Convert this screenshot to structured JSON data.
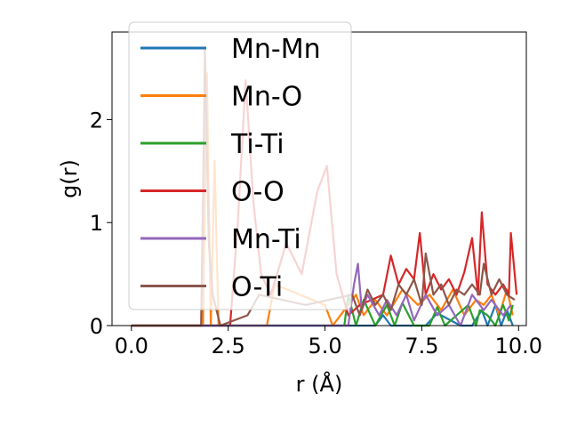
{
  "chart_data": {
    "type": "line",
    "xlabel": "r (Å)",
    "ylabel": "g(r)",
    "xlim": [
      -0.5,
      10.2
    ],
    "ylim": [
      0,
      2.85
    ],
    "x_ticks": [
      {
        "value": 0.0,
        "label": "0.0"
      },
      {
        "value": 2.5,
        "label": "2.5"
      },
      {
        "value": 5.0,
        "label": "5.0"
      },
      {
        "value": 7.5,
        "label": "7.5"
      },
      {
        "value": 10.0,
        "label": "10.0"
      }
    ],
    "y_ticks": [
      {
        "value": 0,
        "label": "0"
      },
      {
        "value": 1,
        "label": "1"
      },
      {
        "value": 2,
        "label": "2"
      }
    ],
    "legend": {
      "placement": "upper-left",
      "entries": [
        {
          "name": "Mn-Mn",
          "color": "#1f77b4"
        },
        {
          "name": "Mn-O",
          "color": "#ff7f0e"
        },
        {
          "name": "Ti-Ti",
          "color": "#2ca02c"
        },
        {
          "name": "O-O",
          "color": "#d62728"
        },
        {
          "name": "Mn-Ti",
          "color": "#9467bd"
        },
        {
          "name": "O-Ti",
          "color": "#8c564b"
        }
      ]
    },
    "series": [
      {
        "name": "Mn-Mn",
        "color": "#1f77b4",
        "x": [
          0,
          6.0,
          6.3,
          6.5,
          6.7,
          7.0,
          7.6,
          7.9,
          8.5,
          8.8,
          9.05,
          9.2,
          9.4,
          9.55,
          9.7,
          9.85
        ],
        "y": [
          0,
          0,
          0,
          0.1,
          0,
          0,
          0,
          0.12,
          0,
          0,
          0.15,
          0,
          0.2,
          0,
          0.15,
          0
        ]
      },
      {
        "name": "Mn-O",
        "color": "#ff7f0e",
        "x": [
          0,
          1.85,
          1.95,
          2.05,
          2.15,
          2.25,
          3.5,
          3.7,
          5.0,
          5.2,
          5.8,
          6.0,
          6.3,
          6.6,
          7.0,
          7.4,
          7.7,
          8.0,
          8.3,
          8.6,
          8.9,
          9.1,
          9.3,
          9.5,
          9.7,
          9.85
        ],
        "y": [
          0,
          0,
          2.45,
          0,
          1.6,
          0,
          0,
          0.4,
          0.2,
          0,
          0.3,
          0.1,
          0.25,
          0.1,
          0.35,
          0.2,
          0.3,
          0.15,
          0.35,
          0.1,
          0.25,
          0.2,
          0.3,
          0.1,
          0.35,
          0.1
        ]
      },
      {
        "name": "Ti-Ti",
        "color": "#2ca02c",
        "x": [
          0,
          5.5,
          5.6,
          5.8,
          6.0,
          6.3,
          6.6,
          6.8,
          7.0,
          7.3,
          7.7,
          7.9,
          8.1,
          8.4,
          8.7,
          8.9,
          9.0,
          9.2,
          9.4,
          9.6,
          9.75,
          9.85
        ],
        "y": [
          0,
          0,
          0.3,
          0,
          0.25,
          0,
          0.2,
          0,
          0.22,
          0,
          0,
          0.18,
          0,
          0.1,
          0.2,
          0,
          0.15,
          0.1,
          0,
          0.2,
          0.05,
          0.2
        ]
      },
      {
        "name": "O-O",
        "color": "#d62728",
        "x": [
          0,
          2.55,
          2.75,
          2.95,
          3.15,
          3.35,
          3.6,
          4.0,
          4.4,
          4.8,
          5.05,
          5.3,
          5.6,
          5.9,
          6.2,
          6.5,
          6.7,
          6.9,
          7.1,
          7.3,
          7.45,
          7.6,
          7.8,
          8.0,
          8.2,
          8.4,
          8.6,
          8.8,
          8.95,
          9.05,
          9.2,
          9.4,
          9.6,
          9.75,
          9.8,
          9.95
        ],
        "y": [
          0,
          0,
          1.0,
          2.38,
          1.2,
          0.5,
          0.3,
          0.8,
          0.5,
          1.3,
          1.55,
          0.5,
          0.1,
          0.2,
          0.25,
          0.3,
          0.68,
          0.4,
          0.55,
          0.45,
          0.9,
          0.3,
          0.5,
          0.35,
          0.45,
          0.3,
          0.52,
          0.85,
          0.3,
          1.1,
          0.4,
          0.3,
          0.4,
          0.3,
          0.9,
          0.3
        ]
      },
      {
        "name": "Mn-Ti",
        "color": "#9467bd",
        "x": [
          0,
          5.6,
          5.75,
          5.85,
          5.95,
          6.1,
          6.4,
          6.6,
          6.85,
          7.1,
          7.3,
          7.6,
          7.9,
          8.2,
          8.5,
          8.8,
          9.1,
          9.3,
          9.6,
          9.8
        ],
        "y": [
          0,
          0,
          0.4,
          0.6,
          0.15,
          0.3,
          0.1,
          0.25,
          0.1,
          0.3,
          0.05,
          0.3,
          0.1,
          0.2,
          0,
          0.3,
          0.15,
          0.25,
          0.1,
          0.2
        ]
      },
      {
        "name": "O-Ti",
        "color": "#8c564b",
        "x": [
          0,
          1.8,
          1.85,
          1.9,
          2.0,
          2.1,
          2.3,
          3.0,
          3.3,
          4.5,
          5.7,
          5.9,
          6.1,
          6.3,
          6.5,
          6.7,
          6.9,
          7.1,
          7.3,
          7.5,
          7.6,
          7.8,
          8.0,
          8.2,
          8.4,
          8.6,
          8.8,
          9.0,
          9.1,
          9.3,
          9.5,
          9.7,
          9.9
        ],
        "y": [
          0,
          0,
          1.2,
          2.7,
          0.8,
          0.3,
          0,
          0.1,
          0.3,
          0.2,
          0.3,
          0.1,
          0.35,
          0.2,
          0.3,
          0.15,
          0.4,
          0.3,
          0.45,
          0.2,
          0.7,
          0.3,
          0.4,
          0.2,
          0.35,
          0.3,
          0.4,
          0.3,
          0.6,
          0.3,
          0.45,
          0.3,
          0.25
        ]
      }
    ]
  }
}
